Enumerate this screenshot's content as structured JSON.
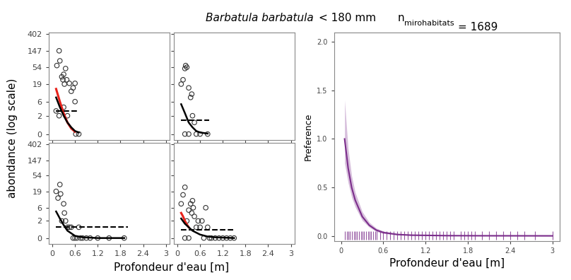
{
  "title_parts": {
    "species": "Barbatula barbatula",
    "size": "< 180 mm",
    "n_label": "n",
    "n_subscript": "mirohabitats",
    "n_value": "= 1689"
  },
  "chart_data": [
    {
      "type": "scatter",
      "log": "y",
      "tick_labels": "y",
      "ylabel": "abondance (log scale)",
      "xlim": [
        -0.1,
        3.1
      ],
      "ylim": [
        -0.3,
        450
      ],
      "xticks": [
        0,
        0.6,
        1.2,
        1.8,
        2.4,
        3
      ],
      "yticks": [
        0,
        2,
        6,
        19,
        54,
        147,
        402
      ],
      "points": {
        "x": [
          0.12,
          0.18,
          0.2,
          0.18,
          0.1,
          0.25,
          0.28,
          0.3,
          0.32,
          0.35,
          0.38,
          0.3,
          0.45,
          0.5,
          0.55,
          0.6,
          0.6,
          0.62,
          0.7,
          0.4
        ],
        "values": [
          60,
          147,
          80,
          2,
          3,
          30,
          25,
          35,
          19,
          50,
          25,
          4,
          20,
          12,
          15,
          20,
          6,
          0,
          0,
          2
        ],
        "color": "#333333"
      },
      "fit_black": {
        "x": [
          0.1,
          0.2,
          0.3,
          0.4,
          0.5,
          0.6,
          0.7
        ],
        "values": [
          8,
          4,
          2,
          1,
          0.5,
          0.2,
          0.1
        ],
        "color": "#000000"
      },
      "fit_red": {
        "x": [
          0.1,
          0.2,
          0.3,
          0.4,
          0.5,
          0.6
        ],
        "values": [
          14,
          6,
          2.5,
          1,
          0.4,
          0.15
        ],
        "color": "#e8221b"
      },
      "mean_line": {
        "x": [
          0.1,
          0.65
        ],
        "value": 3,
        "color": "#000000",
        "line_style": "dashed"
      }
    },
    {
      "type": "scatter",
      "log": "y",
      "tick_labels": false,
      "xlim": [
        -0.1,
        3.1
      ],
      "ylim": [
        -0.3,
        450
      ],
      "xticks": [
        0,
        0.6,
        1.2,
        1.8,
        2.4,
        3
      ],
      "yticks": [
        0,
        2,
        6,
        19,
        54,
        147,
        402
      ],
      "points": {
        "x": [
          0.1,
          0.15,
          0.2,
          0.22,
          0.25,
          0.2,
          0.3,
          0.35,
          0.38,
          0.4,
          0.45,
          0.5,
          0.6,
          0.8,
          0.3
        ],
        "values": [
          19,
          25,
          50,
          60,
          54,
          0,
          15,
          8,
          10,
          2,
          1,
          0,
          0,
          0,
          0
        ],
        "color": "#333333"
      },
      "fit_black": {
        "x": [
          0.1,
          0.2,
          0.3,
          0.4,
          0.5,
          0.6,
          0.8
        ],
        "values": [
          5,
          2.5,
          1,
          0.5,
          0.2,
          0.1,
          0.03
        ],
        "color": "#000000"
      },
      "mean_line": {
        "x": [
          0.1,
          0.85
        ],
        "value": 1.3,
        "color": "#000000",
        "line_style": "dashed"
      }
    },
    {
      "type": "scatter",
      "log": "y",
      "xlabel": "Profondeur d'eau [m]",
      "xlim": [
        -0.1,
        3.1
      ],
      "ylim": [
        -0.3,
        450
      ],
      "xticks": [
        0,
        0.6,
        1.2,
        1.8,
        2.4,
        3
      ],
      "yticks": [
        0,
        2,
        6,
        19,
        54,
        147,
        402
      ],
      "points": {
        "x": [
          0.1,
          0.15,
          0.2,
          0.22,
          0.25,
          0.3,
          0.32,
          0.35,
          0.4,
          0.45,
          0.5,
          0.55,
          0.7,
          0.75,
          0.8,
          0.9,
          1.0,
          1.2,
          1.5,
          1.9,
          0.6,
          0.65
        ],
        "values": [
          19,
          12,
          30,
          16,
          2,
          8,
          4,
          2,
          1,
          1,
          1,
          0,
          1,
          0,
          0,
          0,
          0,
          0,
          0,
          0,
          0,
          0
        ],
        "color": "#333333"
      },
      "fit_black": {
        "x": [
          0.1,
          0.2,
          0.3,
          0.4,
          0.6,
          0.8,
          1.2,
          1.9
        ],
        "values": [
          4.5,
          2.5,
          1.3,
          0.6,
          0.15,
          0.05,
          0,
          0
        ],
        "color": "#000000"
      },
      "mean_line": {
        "x": [
          0.1,
          2.0
        ],
        "value": 1.0,
        "color": "#000000",
        "line_style": "dashed"
      }
    },
    {
      "type": "scatter",
      "log": "y",
      "tick_labels": "x",
      "xlim": [
        -0.1,
        3.1
      ],
      "ylim": [
        -0.3,
        450
      ],
      "xticks": [
        0,
        0.6,
        1.2,
        1.8,
        2.4,
        3
      ],
      "yticks": [
        0,
        2,
        6,
        19,
        54,
        147,
        402
      ],
      "points": {
        "x": [
          0.1,
          0.15,
          0.2,
          0.25,
          0.3,
          0.35,
          0.4,
          0.38,
          0.42,
          0.45,
          0.5,
          0.55,
          0.6,
          0.7,
          0.75,
          0.8,
          0.85,
          0.9,
          1.0,
          1.1,
          1.2,
          1.3,
          1.4,
          1.5,
          0.3,
          0.65,
          0.2
        ],
        "values": [
          8,
          15,
          25,
          2,
          5,
          8,
          10,
          4,
          6,
          3,
          1,
          2,
          1,
          0,
          6,
          1,
          0,
          0,
          0,
          0,
          0,
          0,
          0,
          0,
          0,
          2,
          0
        ],
        "color": "#333333"
      },
      "fit_black": {
        "x": [
          0.1,
          0.2,
          0.3,
          0.4,
          0.6,
          0.8,
          1.0,
          1.5
        ],
        "values": [
          2.5,
          1.5,
          1,
          0.6,
          0.25,
          0.1,
          0.05,
          0
        ],
        "color": "#000000"
      },
      "fit_red": {
        "x": [
          0.1,
          0.15,
          0.2,
          0.25,
          0.3
        ],
        "values": [
          4,
          3,
          2,
          1.4,
          1
        ],
        "color": "#e8221b"
      },
      "mean_line": {
        "x": [
          0.1,
          1.5
        ],
        "value": 0.7,
        "color": "#000000",
        "line_style": "dashed"
      }
    },
    {
      "type": "line",
      "xlabel": "Profondeur d'eau [m]",
      "ylabel": "Preference",
      "xlim": [
        -0.1,
        3.1
      ],
      "ylim": [
        -0.05,
        2.1
      ],
      "xticks": [
        0,
        0.6,
        1.2,
        1.8,
        2.4,
        3
      ],
      "yticks": [
        {
          "value": 0,
          "label": "0.0"
        },
        {
          "value": 0.5,
          "label": "0.5"
        },
        {
          "value": 1.0,
          "label": "1.0"
        },
        {
          "value": 1.5,
          "label": "1.5"
        },
        {
          "value": 2.0,
          "label": "2.0"
        }
      ],
      "series": [
        {
          "color": "#7b2d8b",
          "x": [
            0.05,
            0.1,
            0.15,
            0.2,
            0.3,
            0.4,
            0.5,
            0.6,
            0.8,
            1.0,
            1.5,
            2.0,
            3.0
          ],
          "values": [
            1.0,
            0.7,
            0.5,
            0.37,
            0.2,
            0.11,
            0.06,
            0.035,
            0.015,
            0.008,
            0.003,
            0.002,
            0.001
          ],
          "lower": [
            0.75,
            0.55,
            0.4,
            0.3,
            0.16,
            0.09,
            0.045,
            0.025,
            0.01,
            0.005,
            0.002,
            0.001,
            0.0
          ],
          "upper": [
            1.4,
            0.9,
            0.62,
            0.45,
            0.25,
            0.14,
            0.08,
            0.05,
            0.02,
            0.012,
            0.006,
            0.004,
            0.003
          ]
        }
      ],
      "rug": {
        "color": "#7b2d8b",
        "x": [
          0.05,
          0.08,
          0.1,
          0.12,
          0.15,
          0.18,
          0.2,
          0.22,
          0.25,
          0.28,
          0.3,
          0.32,
          0.35,
          0.38,
          0.4,
          0.42,
          0.45,
          0.48,
          0.5,
          0.55,
          0.6,
          0.65,
          0.7,
          0.75,
          0.8,
          0.85,
          0.9,
          0.95,
          1.0,
          1.05,
          1.1,
          1.15,
          1.2,
          1.25,
          1.3,
          1.35,
          1.4,
          1.45,
          1.5,
          1.55,
          1.6,
          1.7,
          1.75,
          1.8,
          1.85,
          1.9,
          2.0,
          2.1,
          2.2,
          2.3,
          2.4,
          2.5,
          2.6,
          2.75,
          3.0
        ]
      }
    }
  ]
}
